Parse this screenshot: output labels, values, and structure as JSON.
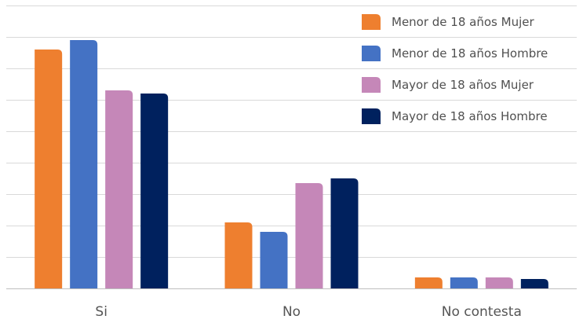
{
  "chart_data": {
    "type": "bar",
    "categories": [
      "Si",
      "No",
      "No contesta"
    ],
    "series": [
      {
        "name": "Menor de 18 años Mujer",
        "color": "#EE7F2F",
        "values": [
          76,
          21,
          3.5
        ]
      },
      {
        "name": "Menor de 18 años Hombre",
        "color": "#4472C4",
        "values": [
          79,
          18,
          3.5
        ]
      },
      {
        "name": "Mayor de 18 años Mujer",
        "color": "#C587B8",
        "values": [
          63,
          33.5,
          3.5
        ]
      },
      {
        "name": "Mayor de 18 años Hombre",
        "color": "#00215E",
        "values": [
          62,
          35,
          3
        ]
      }
    ],
    "ylim": [
      0,
      90
    ],
    "grid": true,
    "legend": "top-right",
    "xlabel": "",
    "ylabel": ""
  }
}
